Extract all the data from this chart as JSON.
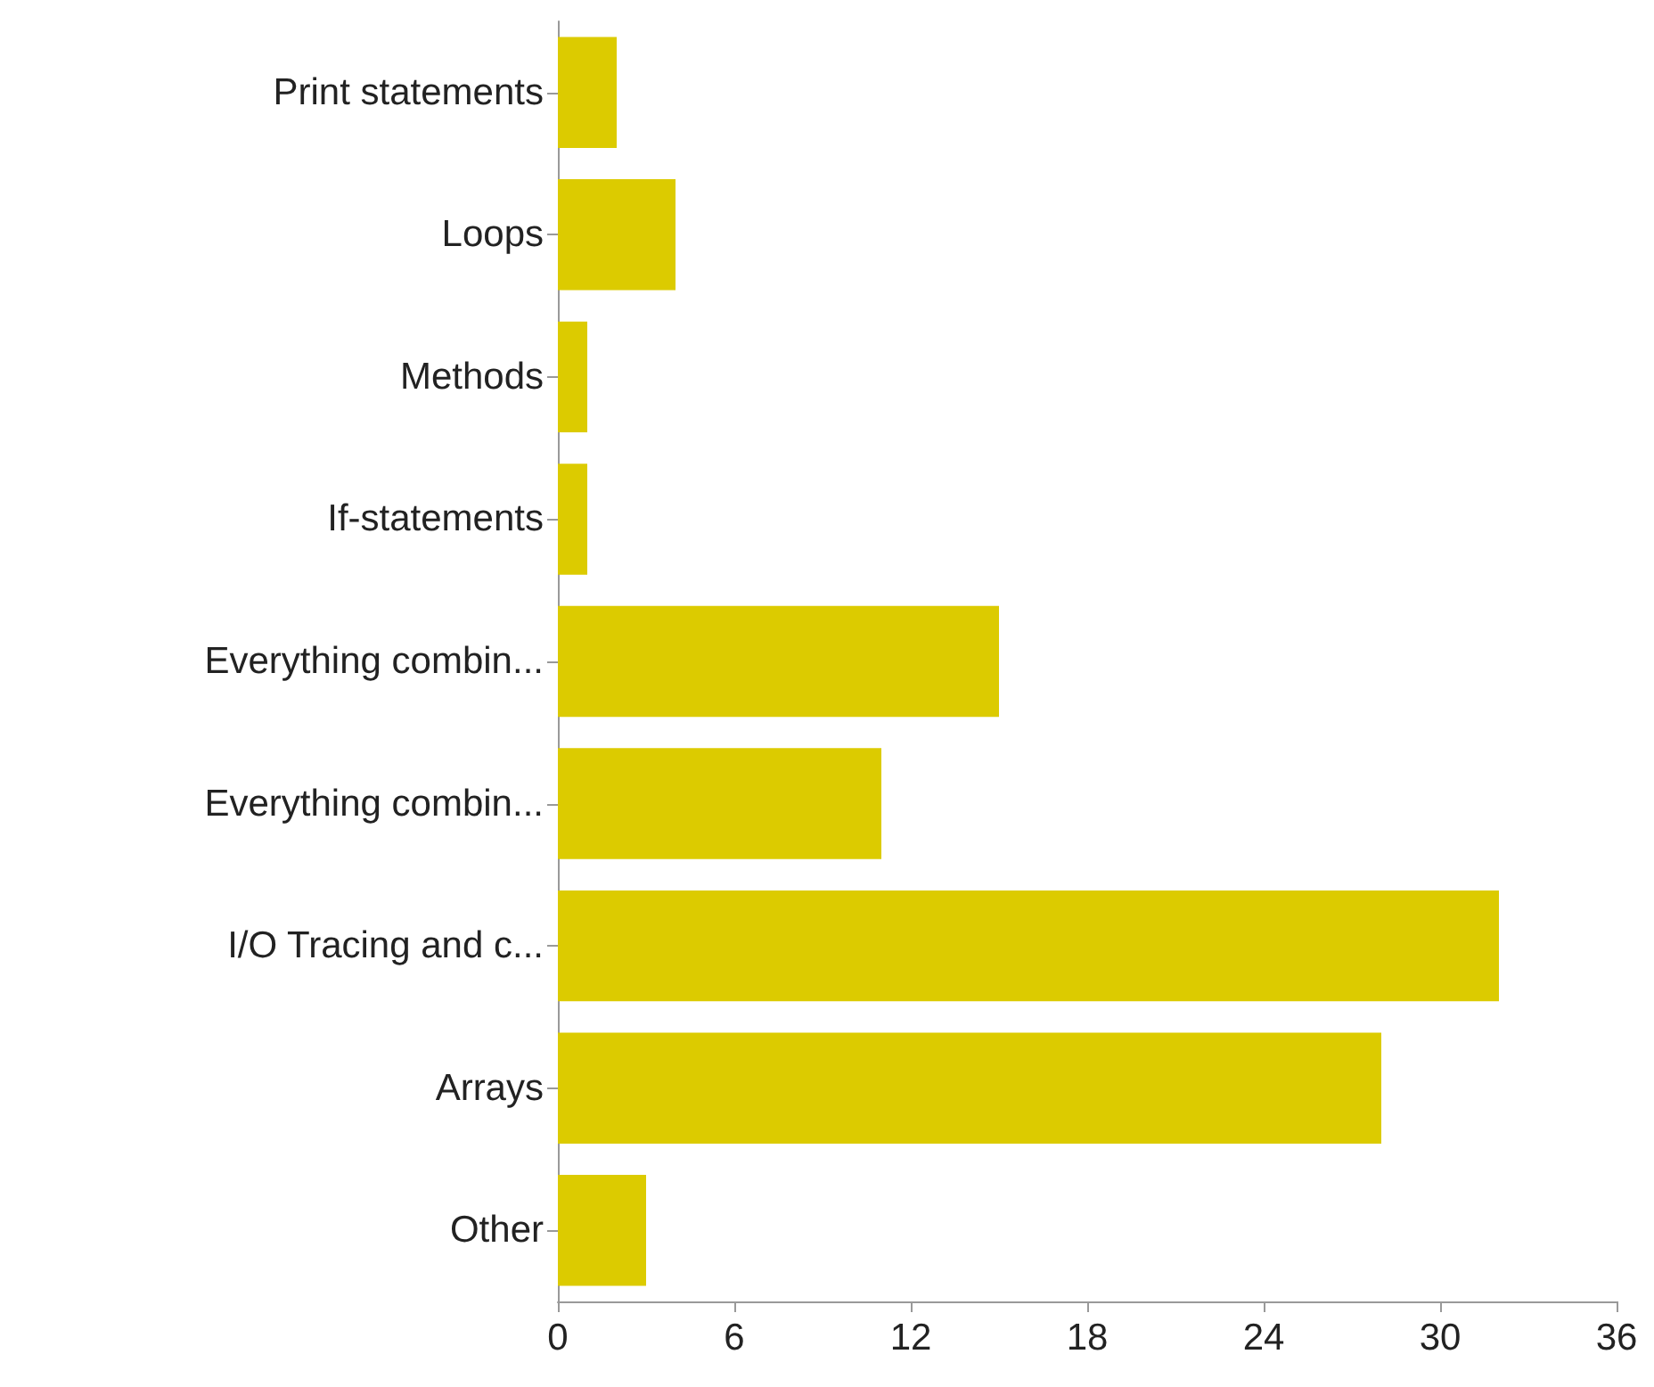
{
  "chart_data": {
    "type": "bar",
    "orientation": "horizontal",
    "categories": [
      "Print statements",
      "Loops",
      "Methods",
      "If-statements",
      "Everything combin...",
      "Everything combin...",
      "I/O Tracing and c...",
      "Arrays",
      "Other"
    ],
    "values": [
      2,
      4,
      1,
      1,
      15,
      11,
      32,
      28,
      3
    ],
    "color": "#dccb00",
    "xlim": [
      0,
      36
    ],
    "xticks": [
      0,
      6,
      12,
      18,
      24,
      30,
      36
    ],
    "grid": false
  }
}
